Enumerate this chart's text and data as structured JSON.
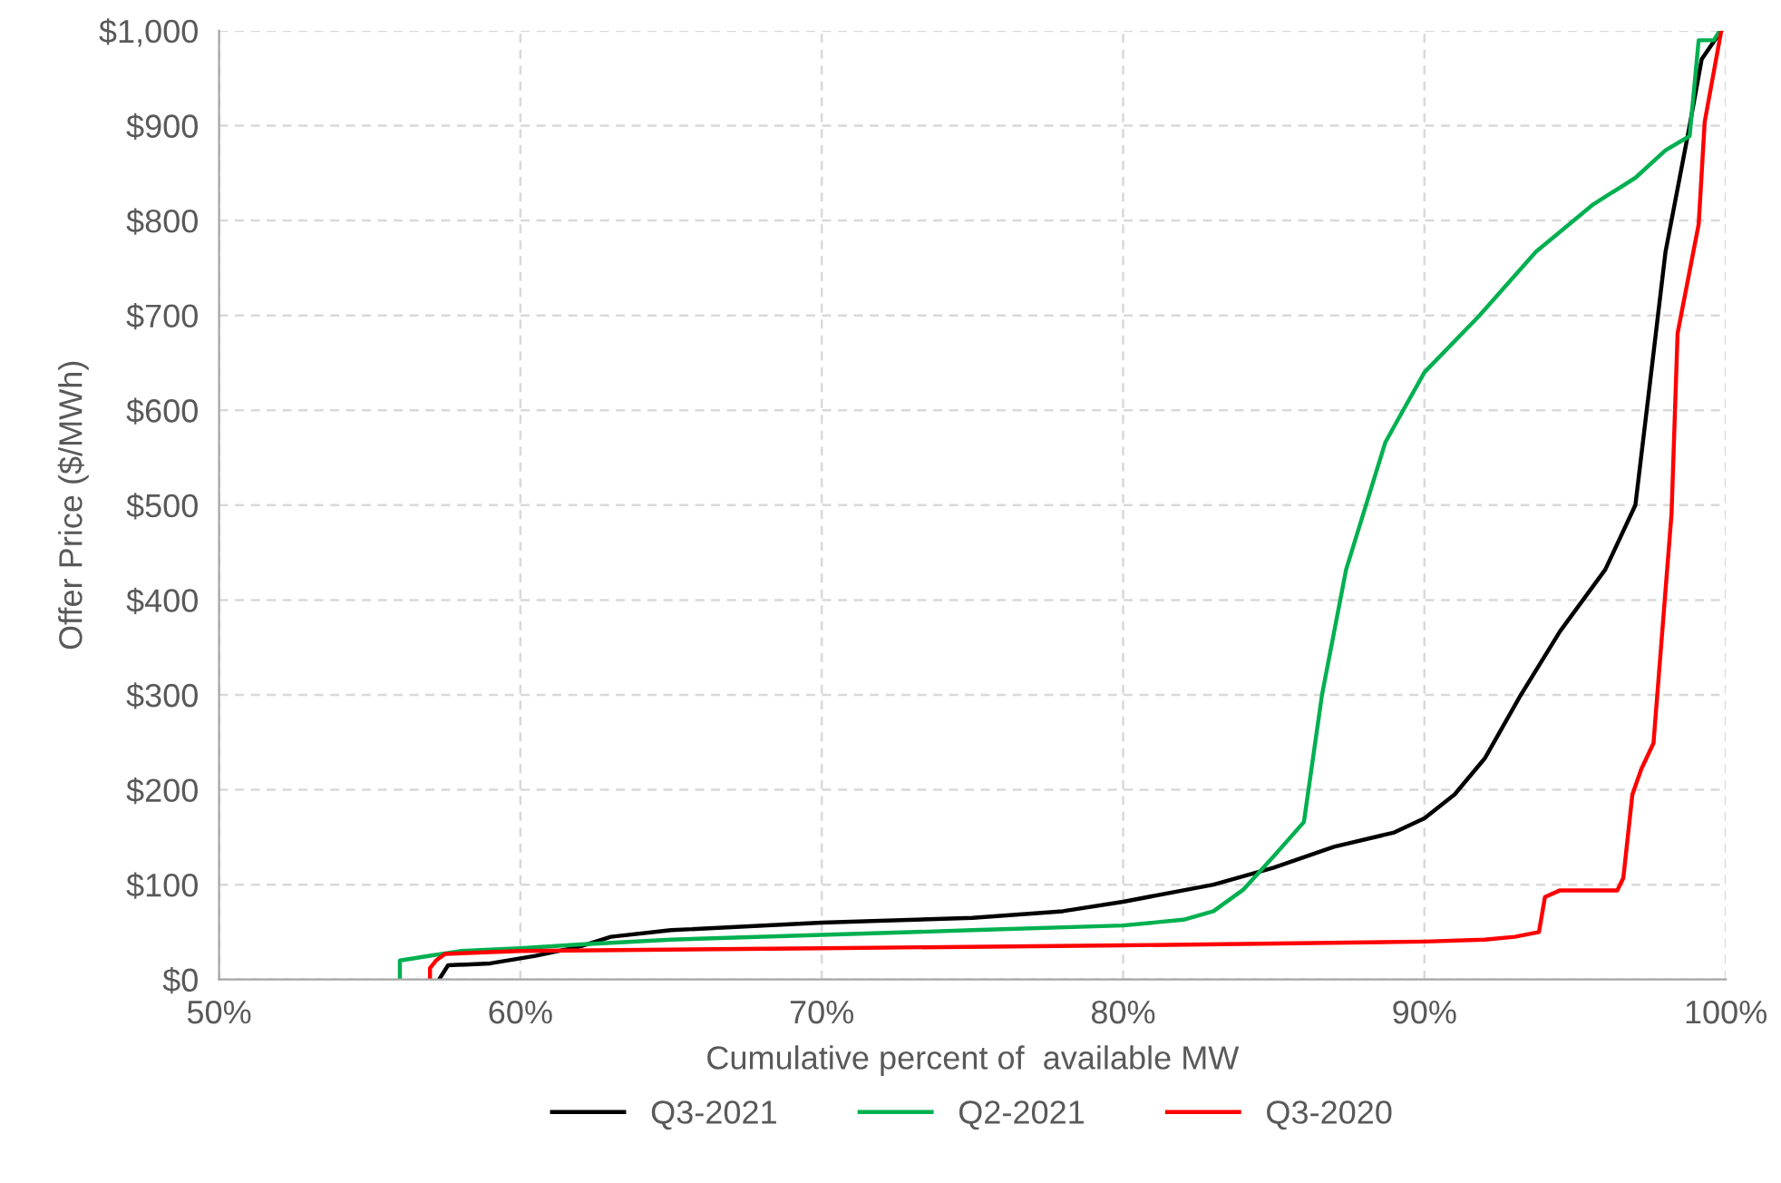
{
  "chart_data": {
    "type": "line",
    "xlabel": "Cumulative percent of  available MW",
    "ylabel": "Offer Price ($/MWh)",
    "xlim": [
      50,
      100
    ],
    "ylim": [
      0,
      1000
    ],
    "xticks": [
      {
        "value": 50,
        "label": "50%"
      },
      {
        "value": 60,
        "label": "60%"
      },
      {
        "value": 70,
        "label": "70%"
      },
      {
        "value": 80,
        "label": "80%"
      },
      {
        "value": 90,
        "label": "90%"
      },
      {
        "value": 100,
        "label": "100%"
      }
    ],
    "yticks": [
      {
        "value": 0,
        "label": "$0"
      },
      {
        "value": 100,
        "label": "$100"
      },
      {
        "value": 200,
        "label": "$200"
      },
      {
        "value": 300,
        "label": "$300"
      },
      {
        "value": 400,
        "label": "$400"
      },
      {
        "value": 500,
        "label": "$500"
      },
      {
        "value": 600,
        "label": "$600"
      },
      {
        "value": 700,
        "label": "$700"
      },
      {
        "value": 800,
        "label": "$800"
      },
      {
        "value": 900,
        "label": "$900"
      },
      {
        "value": 1000,
        "label": "$1,000"
      }
    ],
    "grid": true,
    "legend": "bottom",
    "marker": "none",
    "line_style": "solid",
    "series": [
      {
        "name": "Q3-2021",
        "color": "#000000",
        "x": [
          57.3,
          57.6,
          59,
          60.5,
          62,
          62.5,
          63,
          65,
          70,
          75,
          78,
          80,
          83,
          85,
          87,
          89,
          90,
          91,
          92,
          93.2,
          94.5,
          96,
          97,
          97.5,
          98,
          98.8,
          99.2,
          99.85
        ],
        "values": [
          0,
          15,
          17,
          25,
          35,
          40,
          45,
          52,
          60,
          65,
          72,
          82,
          100,
          118,
          140,
          155,
          170,
          195,
          233,
          300,
          367,
          432,
          500,
          633,
          767,
          900,
          970,
          1000
        ]
      },
      {
        "name": "Q2-2021",
        "color": "#00b050",
        "x": [
          56,
          56,
          57,
          58,
          60,
          62,
          65,
          70,
          75,
          80,
          82,
          83,
          84,
          85,
          86,
          86.6,
          87.4,
          88.7,
          89.1,
          90,
          91.8,
          93.7,
          95.6,
          97,
          98,
          98.8,
          99.1,
          99.6,
          99.8
        ],
        "values": [
          0,
          20,
          25,
          30,
          33,
          37,
          42,
          47,
          52,
          57,
          63,
          72,
          95,
          130,
          166,
          300,
          432,
          566,
          589,
          640,
          699,
          767,
          817,
          845,
          874,
          889,
          990,
          990,
          1000
        ]
      },
      {
        "name": "Q3-2020",
        "color": "#ff0000",
        "x": [
          57,
          57,
          57.2,
          57.5,
          60,
          70,
          80,
          90,
          92,
          93,
          93.8,
          94,
          94.5,
          96.4,
          96.6,
          96.9,
          97.2,
          97.6,
          98.2,
          98.4,
          99.1,
          99.3,
          99.85
        ],
        "values": [
          0,
          12,
          20,
          27,
          30,
          33,
          36,
          40,
          42,
          45,
          50,
          87,
          94,
          94,
          107,
          195,
          222,
          249,
          491,
          681,
          796,
          904,
          1000
        ]
      }
    ]
  }
}
